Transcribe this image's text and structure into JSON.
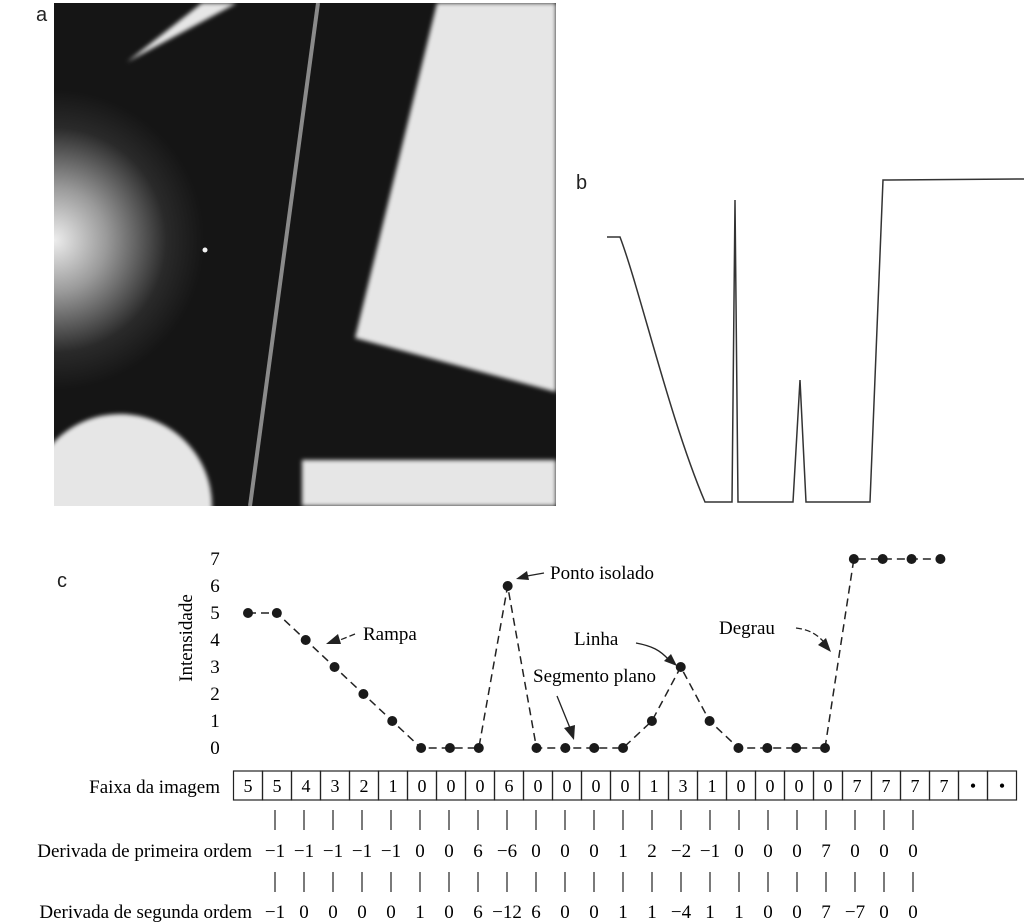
{
  "panels": {
    "a": "a",
    "b": "b",
    "c": "c"
  },
  "chart_data": {
    "type": "line",
    "ylabel": "Intensidade",
    "ylim": [
      0,
      7
    ],
    "yticks": [
      "0",
      "1",
      "2",
      "3",
      "4",
      "5",
      "6",
      "7"
    ],
    "series": [
      {
        "values": [
          5,
          5,
          4,
          3,
          2,
          1,
          0,
          0,
          0,
          6,
          0,
          0,
          0,
          0,
          1,
          3,
          1,
          0,
          0,
          0,
          0,
          7,
          7,
          7,
          7
        ]
      }
    ],
    "annotations": {
      "ramp": "Rampa",
      "isolated_point": "Ponto isolado",
      "line": "Linha",
      "flat_segment": "Segmento plano",
      "step": "Degrau"
    }
  },
  "table": {
    "strip_label": "Faixa da imagem",
    "strip": [
      "5",
      "5",
      "4",
      "3",
      "2",
      "1",
      "0",
      "0",
      "0",
      "6",
      "0",
      "0",
      "0",
      "0",
      "1",
      "3",
      "1",
      "0",
      "0",
      "0",
      "0",
      "7",
      "7",
      "7",
      "7",
      "•",
      "•"
    ],
    "first_label": "Derivada de primeira ordem",
    "first": [
      "−1",
      "−1",
      "−1",
      "−1",
      "−1",
      "0",
      "0",
      "6",
      "−6",
      "0",
      "0",
      "0",
      "1",
      "2",
      "−2",
      "−1",
      "0",
      "0",
      "0",
      "7",
      "0",
      "0",
      "0"
    ],
    "second_label": "Derivada de segunda ordem",
    "second": [
      "−1",
      "0",
      "0",
      "0",
      "0",
      "1",
      "0",
      "6",
      "−12",
      "6",
      "0",
      "0",
      "1",
      "1",
      "−4",
      "1",
      "1",
      "0",
      "0",
      "7",
      "−7",
      "0",
      "0"
    ]
  }
}
